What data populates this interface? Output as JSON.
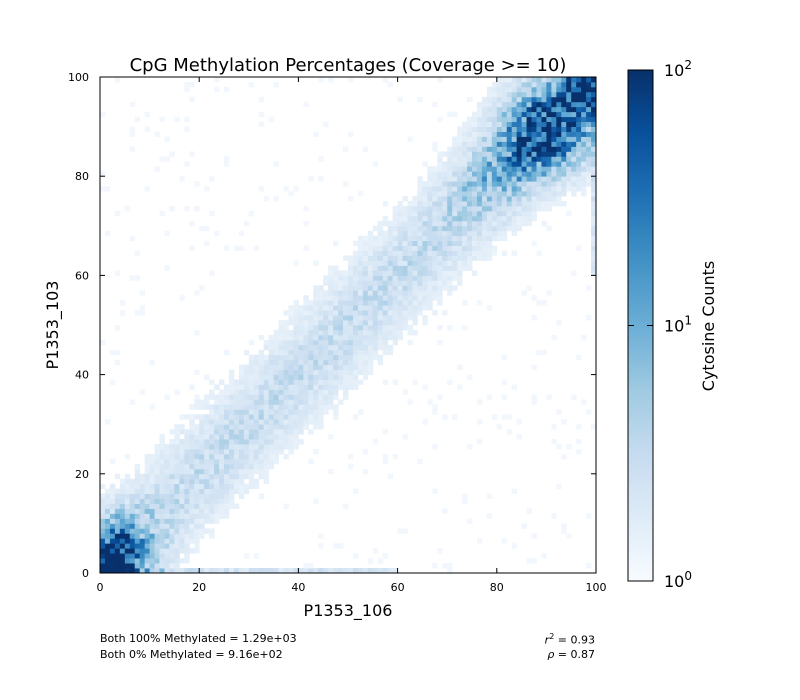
{
  "chart_data": {
    "type": "heatmap",
    "title": "CpG Methylation Percentages (Coverage >= 10)",
    "xlabel": "P1353_106",
    "ylabel": "P1353_103",
    "xlim": [
      0,
      100
    ],
    "ylim": [
      0,
      100
    ],
    "x_ticks": [
      "0",
      "20",
      "40",
      "60",
      "80",
      "100"
    ],
    "y_ticks": [
      "0",
      "20",
      "40",
      "60",
      "80",
      "100"
    ],
    "colorbar": {
      "label": "Cytosine Counts",
      "scale": "log",
      "range": [
        1,
        100
      ],
      "ticks": [
        {
          "value": 1,
          "base": "10",
          "exp": "0"
        },
        {
          "value": 10,
          "base": "10",
          "exp": "1"
        },
        {
          "value": 100,
          "base": "10",
          "exp": "2"
        }
      ],
      "colors": [
        "#f7fbff",
        "#deebf7",
        "#c6dbef",
        "#9ecae1",
        "#6baed6",
        "#4292c6",
        "#2171b5",
        "#08519c",
        "#08306b"
      ]
    },
    "density_peaks": [
      {
        "x": 2,
        "y": 2,
        "count": 100
      },
      {
        "x": 97,
        "y": 96,
        "count": 100
      },
      {
        "x": 88,
        "y": 88,
        "count": 30
      },
      {
        "x": 50,
        "y": 50,
        "count": 3
      }
    ],
    "grid": false
  },
  "annotations": {
    "both_100": "Both 100% Methylated = 1.29e+03",
    "both_0": "Both 0% Methylated = 9.16e+02",
    "r2_label": "r",
    "r2_value": " = 0.93",
    "rho_label": "ρ",
    "rho_value": " = 0.87"
  }
}
